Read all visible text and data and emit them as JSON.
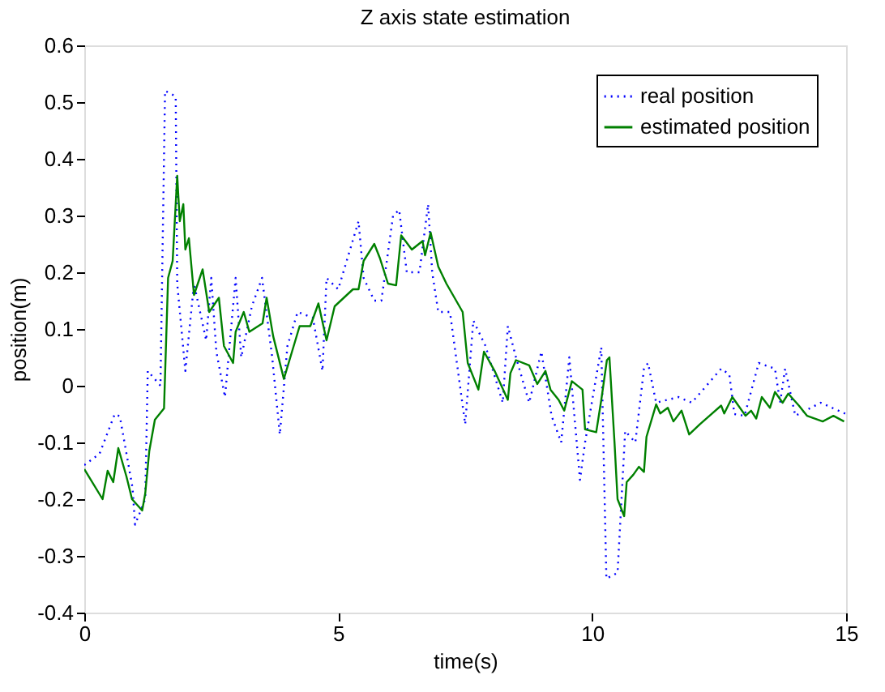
{
  "chart_data": {
    "type": "line",
    "title": "Z axis state estimation",
    "xlabel": "time(s)",
    "ylabel": "position(m)",
    "xlim": [
      0,
      15
    ],
    "xticks": [
      0,
      5,
      10,
      15
    ],
    "ylim": [
      -0.4,
      0.6
    ],
    "yticks": [
      -0.4,
      -0.3,
      -0.2,
      -0.1,
      0,
      0.1,
      0.2,
      0.3,
      0.4,
      0.5,
      0.6
    ],
    "grid": false,
    "legend": "top right",
    "marker": "none",
    "series": [
      {
        "name": "real position",
        "color": "#0000ff",
        "line_style": "dotted",
        "x": [
          0,
          0.3,
          0.6,
          0.7,
          0.95,
          1.0,
          1.2,
          1.25,
          1.5,
          1.59,
          1.8,
          1.83,
          1.99,
          2.16,
          2.4,
          2.5,
          2.6,
          2.77,
          2.98,
          3.09,
          3.3,
          3.5,
          3.7,
          3.85,
          4.0,
          4.2,
          4.5,
          4.69,
          4.77,
          5.0,
          5.4,
          5.5,
          5.71,
          5.85,
          6.08,
          6.2,
          6.35,
          6.6,
          6.77,
          6.85,
          6.97,
          7.2,
          7.5,
          7.66,
          7.9,
          8.24,
          8.34,
          8.5,
          8.76,
          9.0,
          9.2,
          9.39,
          9.55,
          9.76,
          9.86,
          10.05,
          10.18,
          10.28,
          10.5,
          10.65,
          10.85,
          11.02,
          11.1,
          11.26,
          11.7,
          11.96,
          12.54,
          12.7,
          12.8,
          13.0,
          13.28,
          13.6,
          13.7,
          13.8,
          14.0,
          14.5,
          15.0
        ],
        "values": [
          -0.14,
          -0.12,
          -0.05,
          -0.054,
          -0.18,
          -0.245,
          -0.2,
          0.026,
          0.0,
          0.52,
          0.51,
          0.18,
          0.026,
          0.18,
          0.08,
          0.19,
          0.06,
          -0.02,
          0.19,
          0.05,
          0.14,
          0.19,
          0.05,
          -0.086,
          0.07,
          0.13,
          0.12,
          0.026,
          0.19,
          0.17,
          0.29,
          0.19,
          0.15,
          0.15,
          0.3,
          0.31,
          0.2,
          0.2,
          0.32,
          0.2,
          0.13,
          0.13,
          -0.068,
          0.115,
          0.07,
          -0.03,
          0.105,
          0.05,
          -0.03,
          0.06,
          -0.053,
          -0.1,
          0.05,
          -0.166,
          -0.1,
          0.0,
          0.068,
          -0.34,
          -0.33,
          -0.08,
          -0.1,
          0.03,
          0.04,
          -0.03,
          -0.02,
          -0.03,
          0.03,
          0.02,
          -0.05,
          -0.053,
          0.04,
          0.03,
          -0.03,
          0.03,
          -0.053,
          -0.03,
          -0.05
        ]
      },
      {
        "name": "estimated position",
        "color": "#008000",
        "line_style": "solid",
        "x": [
          0,
          0.36,
          0.46,
          0.57,
          0.67,
          0.83,
          0.94,
          1.14,
          1.2,
          1.28,
          1.39,
          1.57,
          1.65,
          1.74,
          1.83,
          1.88,
          1.95,
          1.99,
          2.06,
          2.16,
          2.33,
          2.46,
          2.65,
          2.75,
          2.93,
          2.98,
          3.14,
          3.25,
          3.51,
          3.59,
          3.72,
          3.93,
          4.09,
          4.24,
          4.45,
          4.61,
          4.77,
          4.93,
          5.29,
          5.4,
          5.5,
          5.71,
          5.82,
          5.98,
          6.14,
          6.24,
          6.45,
          6.66,
          6.71,
          6.82,
          6.97,
          7.13,
          7.45,
          7.55,
          7.76,
          7.87,
          8.08,
          8.34,
          8.39,
          8.5,
          8.76,
          8.92,
          9.08,
          9.18,
          9.34,
          9.45,
          9.6,
          9.81,
          9.86,
          10.08,
          10.18,
          10.29,
          10.34,
          10.44,
          10.5,
          10.63,
          10.68,
          10.81,
          10.92,
          11.02,
          11.07,
          11.26,
          11.34,
          11.49,
          11.6,
          11.76,
          11.91,
          12.12,
          12.54,
          12.6,
          12.76,
          13.02,
          13.13,
          13.23,
          13.34,
          13.5,
          13.6,
          13.75,
          13.86,
          14.07,
          14.23,
          14.54,
          14.75,
          14.96
        ],
        "values": [
          -0.147,
          -0.2,
          -0.15,
          -0.17,
          -0.11,
          -0.16,
          -0.2,
          -0.22,
          -0.19,
          -0.115,
          -0.06,
          -0.04,
          0.19,
          0.22,
          0.37,
          0.29,
          0.32,
          0.24,
          0.26,
          0.16,
          0.205,
          0.13,
          0.155,
          0.07,
          0.04,
          0.095,
          0.13,
          0.095,
          0.11,
          0.155,
          0.087,
          0.012,
          0.06,
          0.105,
          0.105,
          0.145,
          0.08,
          0.14,
          0.17,
          0.17,
          0.22,
          0.25,
          0.225,
          0.18,
          0.177,
          0.265,
          0.24,
          0.255,
          0.23,
          0.27,
          0.21,
          0.18,
          0.13,
          0.04,
          -0.007,
          0.06,
          0.026,
          -0.025,
          0.022,
          0.045,
          0.036,
          0.003,
          0.026,
          -0.007,
          -0.025,
          -0.044,
          0.008,
          -0.007,
          -0.077,
          -0.082,
          -0.025,
          0.045,
          0.05,
          -0.1,
          -0.2,
          -0.23,
          -0.17,
          -0.157,
          -0.143,
          -0.152,
          -0.09,
          -0.033,
          -0.049,
          -0.039,
          -0.063,
          -0.044,
          -0.086,
          -0.068,
          -0.035,
          -0.049,
          -0.02,
          -0.053,
          -0.044,
          -0.058,
          -0.02,
          -0.039,
          -0.011,
          -0.03,
          -0.014,
          -0.035,
          -0.053,
          -0.063,
          -0.053,
          -0.063
        ]
      }
    ]
  }
}
